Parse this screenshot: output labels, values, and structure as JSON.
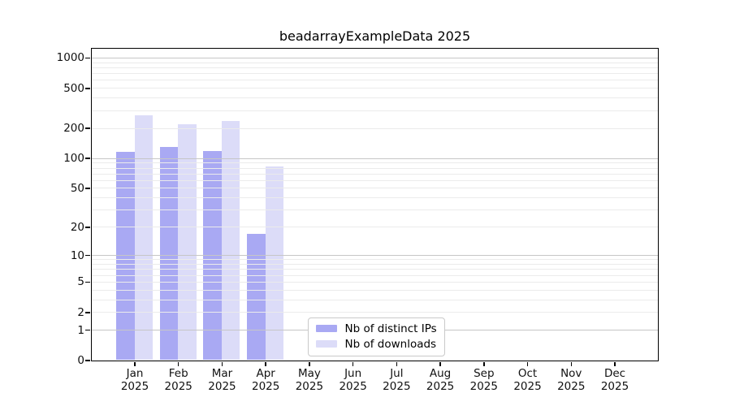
{
  "title": "beadarrayExampleData 2025",
  "chart_data": {
    "type": "bar",
    "title": "beadarrayExampleData 2025",
    "scale": "log1p",
    "grid": "on",
    "legend_position": "lower-center",
    "categories": [
      "Jan",
      "Feb",
      "Mar",
      "Apr",
      "May",
      "Jun",
      "Jul",
      "Aug",
      "Sep",
      "Oct",
      "Nov",
      "Dec"
    ],
    "year_label": "2025",
    "series": [
      {
        "name": "Nb of distinct IPs",
        "color": "#a9a9f3",
        "values": [
          115,
          128,
          117,
          17,
          null,
          null,
          null,
          null,
          null,
          null,
          null,
          null
        ]
      },
      {
        "name": "Nb of downloads",
        "color": "#dcdcf8",
        "values": [
          267,
          218,
          233,
          82,
          null,
          null,
          null,
          null,
          null,
          null,
          null,
          null
        ]
      }
    ],
    "y_ticks": [
      1000,
      500,
      200,
      100,
      50,
      20,
      10,
      5,
      2,
      1,
      0
    ],
    "ylim": [
      0,
      1237
    ],
    "y_max": 1237
  },
  "colors": {
    "bar_distinct_ips": "#a9a9f3",
    "bar_downloads": "#dcdcf8",
    "grid_major": "#c6c6c6",
    "grid_minor": "#ebebeb",
    "axis": "#000000",
    "background": "#ffffff"
  }
}
